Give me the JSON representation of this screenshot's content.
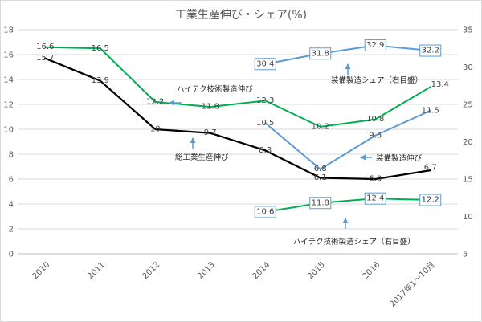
{
  "chart_data": {
    "type": "line",
    "title": "工業生産伸び・シェア(%)",
    "categories": [
      "2010",
      "2011",
      "2012",
      "2013",
      "2014",
      "2015",
      "2016",
      "2017年1～10月"
    ],
    "grid": true,
    "y_left": {
      "range": [
        0,
        18
      ],
      "ticks": [
        0,
        2,
        4,
        6,
        8,
        10,
        12,
        14,
        16,
        18
      ]
    },
    "y_right": {
      "range": [
        5,
        35
      ],
      "ticks": [
        5,
        10,
        15,
        20,
        25,
        30,
        35
      ]
    },
    "series": [
      {
        "name": "総工業生産伸び",
        "secondary_axis": false,
        "color": "#000000",
        "values": [
          15.7,
          13.9,
          10,
          9.7,
          8.3,
          6.1,
          6.0,
          6.7
        ],
        "labels": [
          "15.7",
          "13.9",
          "10",
          "9.7",
          "8.3",
          "6.1",
          "6.0",
          "6.7"
        ]
      },
      {
        "name": "ハイテク技術製造伸び",
        "secondary_axis": false,
        "color": "#00b050",
        "values": [
          16.6,
          16.5,
          12.2,
          11.8,
          12.3,
          10.2,
          10.8,
          13.4
        ],
        "labels": [
          "16.6",
          "16.5",
          "12.2",
          "11.8",
          "12.3",
          "10.2",
          "10.8",
          "13.4"
        ]
      },
      {
        "name": "装備製造伸び",
        "secondary_axis": false,
        "color": "#5b9bd5",
        "values": [
          null,
          null,
          null,
          null,
          10.5,
          6.8,
          9.5,
          11.5
        ],
        "labels": [
          null,
          null,
          null,
          null,
          "10.5",
          "6.8",
          "9.5",
          "11.5"
        ]
      },
      {
        "name": "装備製造シェア（右目盛）",
        "secondary_axis": true,
        "color": "#5b9bd5",
        "values": [
          null,
          null,
          null,
          null,
          30.4,
          31.8,
          32.9,
          32.2
        ],
        "labels": [
          null,
          null,
          null,
          null,
          "30.4",
          "31.8",
          "32.9",
          "32.2"
        ]
      },
      {
        "name": "ハイテク技術製造シェア（右目盛）",
        "secondary_axis": true,
        "color": "#00b050",
        "values": [
          null,
          null,
          null,
          null,
          10.6,
          11.8,
          12.4,
          12.2
        ],
        "labels": [
          null,
          null,
          null,
          null,
          "10.6",
          "11.8",
          "12.4",
          "12.2"
        ]
      }
    ]
  }
}
